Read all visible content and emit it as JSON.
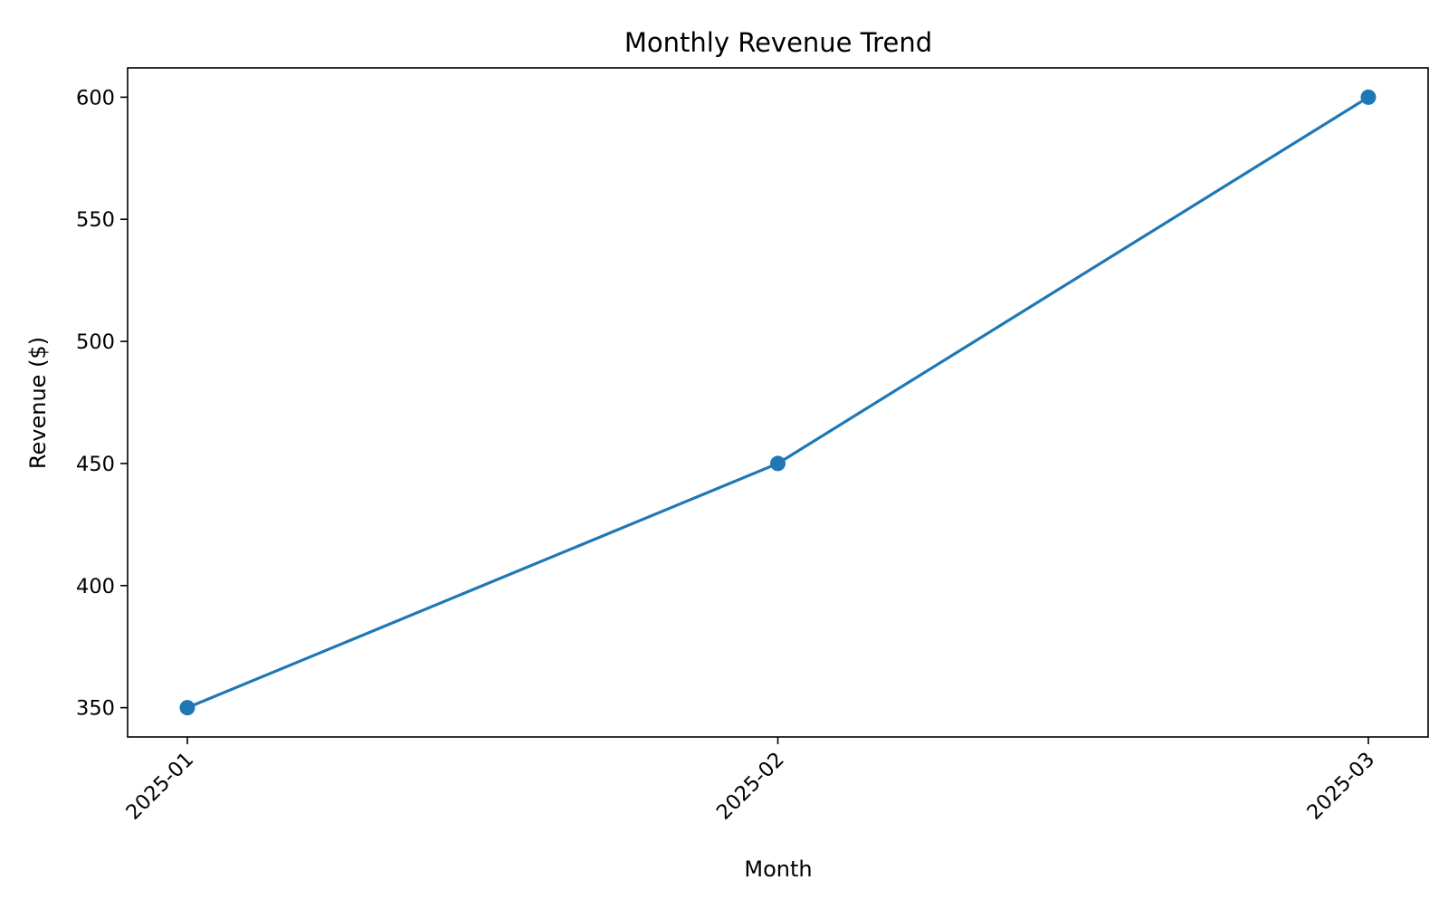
{
  "chart_data": {
    "type": "line",
    "title": "Monthly Revenue Trend",
    "xlabel": "Month",
    "ylabel": "Revenue ($)",
    "categories": [
      "2025-01",
      "2025-02",
      "2025-03"
    ],
    "series": [
      {
        "values": [
          350,
          450,
          600
        ],
        "color": "#1f77b4",
        "marker": "circle"
      }
    ],
    "ylim": [
      338,
      612
    ],
    "yticks": [
      350,
      400,
      450,
      500,
      550,
      600
    ],
    "grid": false,
    "legend": false
  }
}
